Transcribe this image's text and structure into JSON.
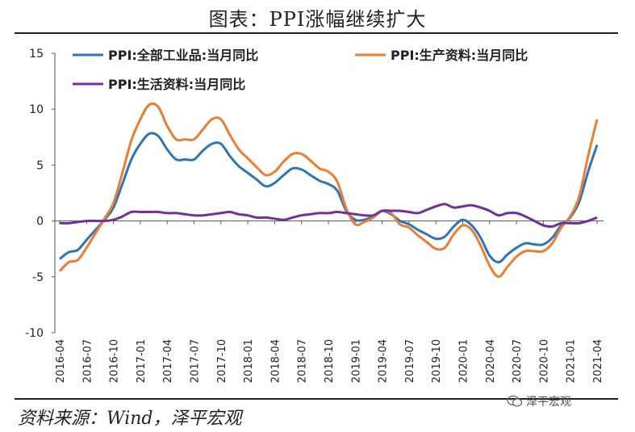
{
  "title": "图表：PPI涨幅继续扩大",
  "source": "资料来源：Wind，泽平宏观",
  "watermark": "泽平宏观",
  "chart_data": {
    "type": "line",
    "x": [
      "2016-04",
      "2016-05",
      "2016-06",
      "2016-07",
      "2016-08",
      "2016-09",
      "2016-10",
      "2016-11",
      "2016-12",
      "2017-01",
      "2017-02",
      "2017-03",
      "2017-04",
      "2017-05",
      "2017-06",
      "2017-07",
      "2017-08",
      "2017-09",
      "2017-10",
      "2017-11",
      "2017-12",
      "2018-01",
      "2018-02",
      "2018-03",
      "2018-04",
      "2018-05",
      "2018-06",
      "2018-07",
      "2018-08",
      "2018-09",
      "2018-10",
      "2018-11",
      "2018-12",
      "2019-01",
      "2019-02",
      "2019-03",
      "2019-04",
      "2019-05",
      "2019-06",
      "2019-07",
      "2019-08",
      "2019-09",
      "2019-10",
      "2019-11",
      "2019-12",
      "2020-01",
      "2020-02",
      "2020-03",
      "2020-04",
      "2020-05",
      "2020-06",
      "2020-07",
      "2020-08",
      "2020-09",
      "2020-10",
      "2020-11",
      "2020-12",
      "2021-01",
      "2021-02",
      "2021-03",
      "2021-04"
    ],
    "x_tick_labels": [
      "2016-04",
      "2016-07",
      "2016-10",
      "2017-01",
      "2017-04",
      "2017-07",
      "2017-10",
      "2018-01",
      "2018-04",
      "2018-07",
      "2018-10",
      "2019-01",
      "2019-04",
      "2019-07",
      "2019-10",
      "2020-01",
      "2020-04",
      "2020-07",
      "2020-10",
      "2021-01",
      "2021-04"
    ],
    "ylim": [
      -10,
      15
    ],
    "yticks": [
      15,
      10,
      5,
      0,
      -5,
      -10
    ],
    "legend_position": "top-left",
    "series": [
      {
        "name": "PPI:全部工业品:当月同比",
        "color": "#2e75b6",
        "values": [
          -3.4,
          -2.8,
          -2.6,
          -1.7,
          -0.8,
          0.1,
          1.2,
          3.3,
          5.5,
          6.9,
          7.8,
          7.6,
          6.4,
          5.5,
          5.5,
          5.5,
          6.3,
          6.9,
          6.9,
          5.8,
          4.9,
          4.3,
          3.7,
          3.1,
          3.4,
          4.1,
          4.7,
          4.6,
          4.1,
          3.6,
          3.3,
          2.7,
          0.9,
          0.1,
          0.1,
          0.4,
          0.9,
          0.6,
          0.0,
          -0.3,
          -0.8,
          -1.2,
          -1.6,
          -1.4,
          -0.5,
          0.1,
          -0.4,
          -1.5,
          -3.1,
          -3.7,
          -3.0,
          -2.4,
          -2.0,
          -2.1,
          -2.1,
          -1.5,
          -0.4,
          0.3,
          1.7,
          4.4,
          6.8
        ]
      },
      {
        "name": "PPI:生产资料:当月同比",
        "color": "#ed7d31",
        "values": [
          -4.5,
          -3.7,
          -3.5,
          -2.4,
          -1.1,
          0.2,
          1.6,
          4.3,
          7.2,
          9.1,
          10.4,
          10.2,
          8.5,
          7.3,
          7.3,
          7.3,
          8.2,
          9.1,
          9.1,
          7.7,
          6.4,
          5.6,
          4.8,
          4.1,
          4.4,
          5.3,
          6.0,
          6.0,
          5.4,
          4.7,
          4.4,
          3.5,
          1.1,
          -0.3,
          -0.1,
          0.3,
          0.9,
          0.7,
          -0.3,
          -0.6,
          -1.3,
          -1.9,
          -2.5,
          -2.4,
          -1.2,
          -0.4,
          -0.8,
          -2.2,
          -4.0,
          -5.0,
          -4.1,
          -3.2,
          -2.7,
          -2.7,
          -2.7,
          -2.0,
          -0.6,
          0.4,
          2.2,
          5.8,
          9.1
        ]
      },
      {
        "name": "PPI:生活资料:当月同比",
        "color": "#7030a0",
        "values": [
          -0.2,
          -0.2,
          -0.1,
          0.0,
          0.0,
          0.0,
          0.1,
          0.4,
          0.8,
          0.8,
          0.8,
          0.8,
          0.7,
          0.7,
          0.6,
          0.5,
          0.5,
          0.6,
          0.7,
          0.8,
          0.6,
          0.5,
          0.3,
          0.3,
          0.2,
          0.1,
          0.3,
          0.5,
          0.6,
          0.7,
          0.7,
          0.8,
          0.7,
          0.6,
          0.5,
          0.5,
          0.9,
          0.9,
          0.9,
          0.8,
          0.7,
          1.0,
          1.3,
          1.5,
          1.2,
          1.3,
          1.4,
          1.2,
          0.9,
          0.5,
          0.7,
          0.7,
          0.4,
          0.0,
          -0.4,
          -0.5,
          -0.2,
          -0.2,
          -0.2,
          0.0,
          0.3
        ]
      }
    ]
  }
}
